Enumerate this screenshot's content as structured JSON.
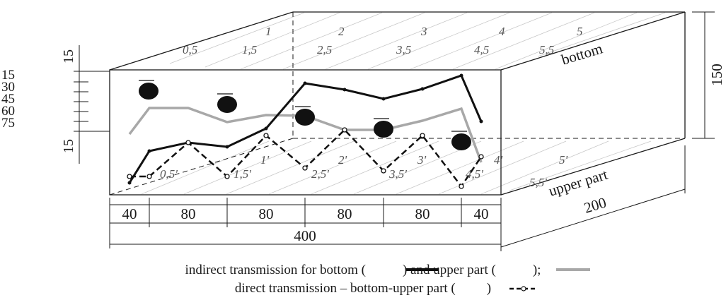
{
  "box": {
    "top_face_label": "bottom",
    "bottom_face_label": "upper part",
    "height_label": "150",
    "depth_label": "200",
    "total_width_label": "400"
  },
  "width_segments": [
    "40",
    "80",
    "80",
    "80",
    "80",
    "40"
  ],
  "top_grid_labels": [
    "0,5",
    "1",
    "1,5",
    "2",
    "2,5",
    "3",
    "3,5",
    "4",
    "4,5",
    "5",
    "5,5"
  ],
  "bottom_grid_labels": [
    "0,5'",
    "1'",
    "1,5'",
    "2'",
    "2,5'",
    "3'",
    "3,5'",
    "4'",
    "4,5'",
    "5'",
    "5,5'"
  ],
  "left_scale": {
    "top_label": "15",
    "bottom_label": "15",
    "ticks": [
      "15",
      "30",
      "45",
      "60",
      "75"
    ]
  },
  "series": {
    "bottom": {
      "color": "#111111"
    },
    "upper": {
      "color": "#a8a8a8"
    },
    "direct": {
      "color": "#111111"
    }
  },
  "legend": {
    "line1_part1": "indirect transmission for bottom (",
    "line1_part2": ") and upper part (",
    "line1_part3": ");",
    "line2_part1": "direct transmission – bottom-upper part (",
    "line2_part2": ")"
  }
}
